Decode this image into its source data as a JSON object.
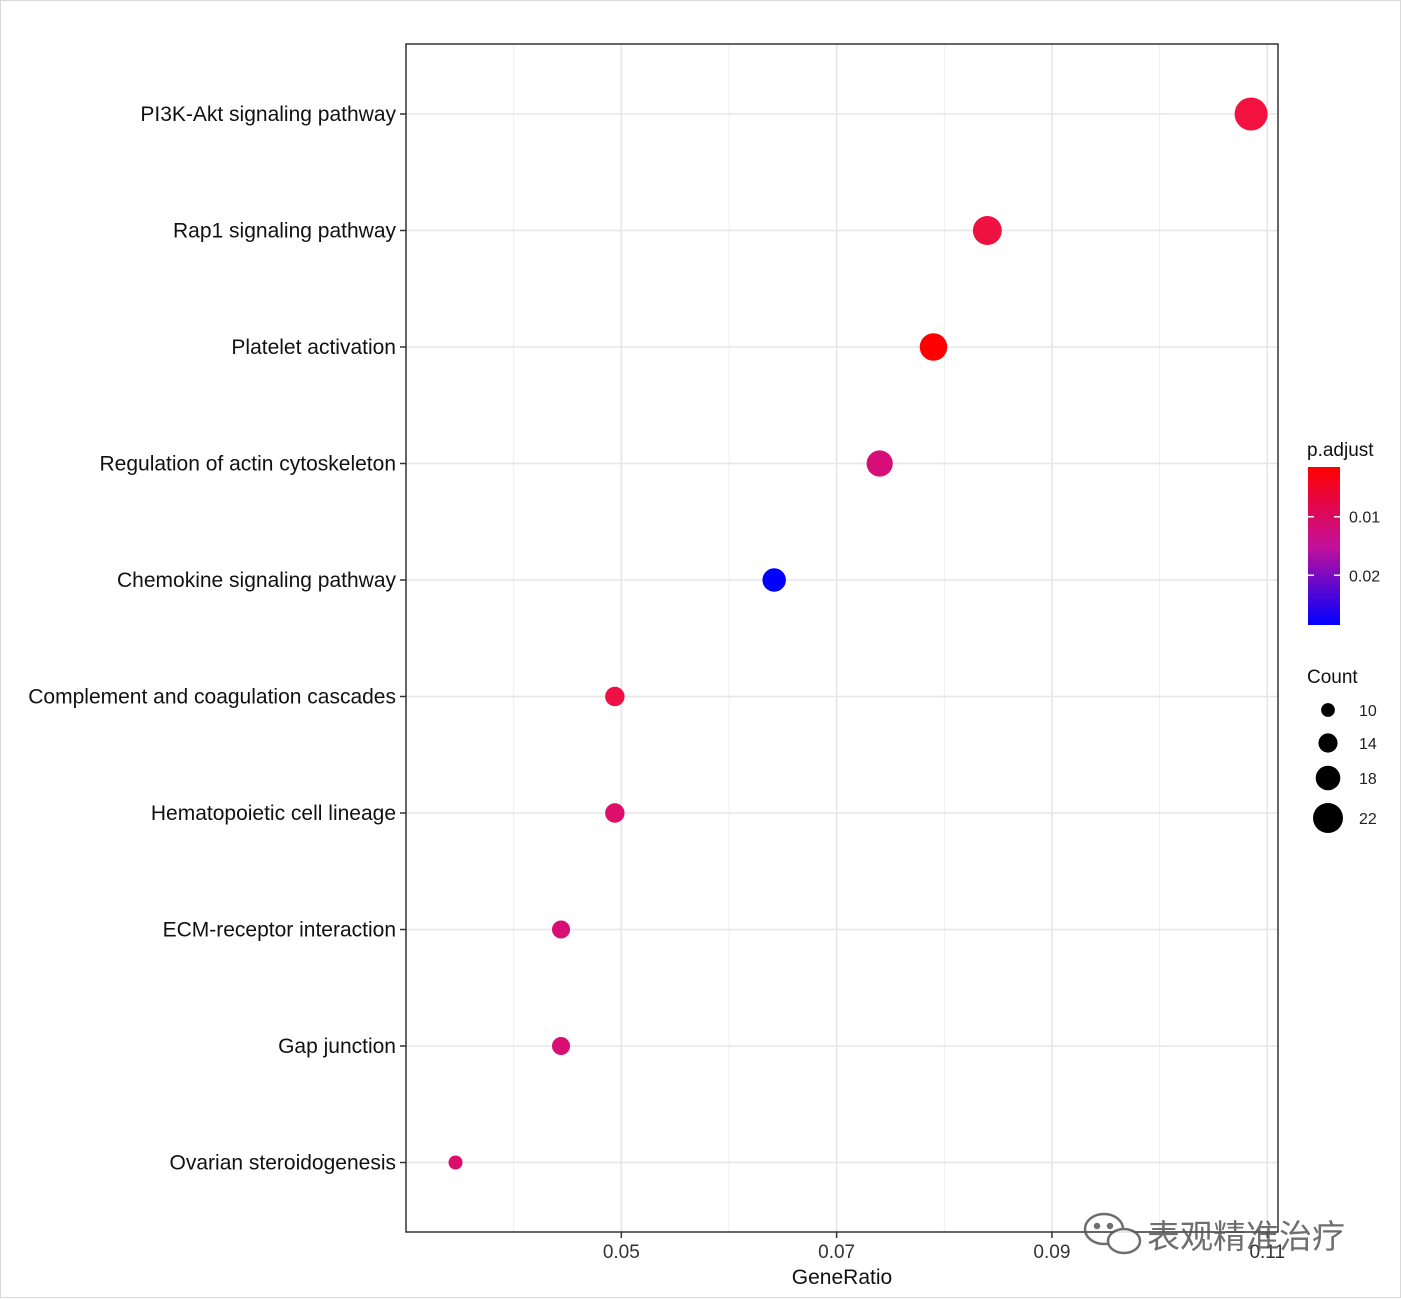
{
  "chart_data": {
    "type": "scatter",
    "xlabel": "GeneRatio",
    "ylabel": "",
    "xlim": [
      0.03,
      0.111
    ],
    "xticks": [
      0.05,
      0.07,
      0.09,
      0.11
    ],
    "xtick_labels": [
      "0.05",
      "0.07",
      "0.09",
      "0.11"
    ],
    "grid": true,
    "points": [
      {
        "term": "PI3K-Akt signaling pathway",
        "gene_ratio": 0.1085,
        "count": 22,
        "p_adjust": 0.0038,
        "color": "#f2113f"
      },
      {
        "term": "Rap1 signaling pathway",
        "gene_ratio": 0.084,
        "count": 19,
        "p_adjust": 0.004,
        "color": "#ef1140"
      },
      {
        "term": "Platelet activation",
        "gene_ratio": 0.079,
        "count": 18,
        "p_adjust": 0.0015,
        "color": "#ff0000"
      },
      {
        "term": "Regulation of actin cytoskeleton",
        "gene_ratio": 0.074,
        "count": 17,
        "p_adjust": 0.011,
        "color": "#d80e78"
      },
      {
        "term": "Chemokine signaling pathway",
        "gene_ratio": 0.0642,
        "count": 15,
        "p_adjust": 0.027,
        "color": "#0000ff"
      },
      {
        "term": "Complement and coagulation cascades",
        "gene_ratio": 0.0494,
        "count": 12,
        "p_adjust": 0.006,
        "color": "#ee1044"
      },
      {
        "term": "Hematopoietic cell lineage",
        "gene_ratio": 0.0494,
        "count": 12,
        "p_adjust": 0.01,
        "color": "#dd0e6c"
      },
      {
        "term": "ECM-receptor interaction",
        "gene_ratio": 0.0444,
        "count": 11,
        "p_adjust": 0.0115,
        "color": "#d90e75"
      },
      {
        "term": "Gap junction",
        "gene_ratio": 0.0444,
        "count": 11,
        "p_adjust": 0.0115,
        "color": "#d90e75"
      },
      {
        "term": "Ovarian steroidogenesis",
        "gene_ratio": 0.0346,
        "count": 8,
        "p_adjust": 0.01,
        "color": "#dc0e6d"
      }
    ],
    "legend": {
      "color_title": "p.adjust",
      "color_range": [
        0.0015,
        0.0285
      ],
      "color_ticks": [
        0.01,
        0.02
      ],
      "color_tick_labels": [
        "0.01",
        "0.02"
      ],
      "color_low": "#ff0000",
      "color_high": "#0000ff",
      "size_title": "Count",
      "size_values": [
        10,
        14,
        18,
        22
      ],
      "size_labels": [
        "10",
        "14",
        "18",
        "22"
      ],
      "placement": "right"
    }
  },
  "watermark": {
    "text": "表观精准治疗",
    "icon": "wechat-icon"
  }
}
